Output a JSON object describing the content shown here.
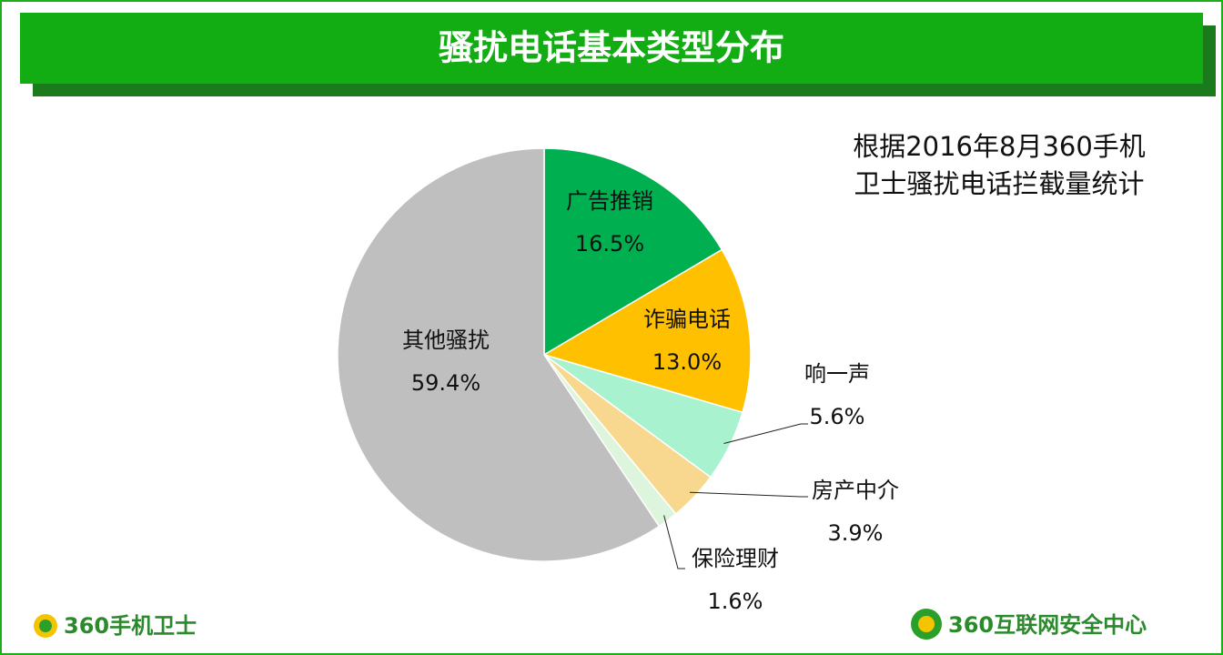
{
  "chart_data": {
    "type": "pie",
    "title": "骚扰电话基本类型分布",
    "subtitle": [
      "根据2016年8月360手机",
      "卫士骚扰电话拦截量统计"
    ],
    "categories": [
      "广告推销",
      "诈骗电话",
      "响一声",
      "房产中介",
      "保险理财",
      "其他骚扰"
    ],
    "values": [
      16.5,
      13.0,
      5.6,
      3.9,
      1.6,
      59.4
    ],
    "value_labels": [
      "16.5%",
      "13.0%",
      "5.6%",
      "3.9%",
      "1.6%",
      "59.4%"
    ],
    "colors": [
      "#00b050",
      "#ffc000",
      "#a9f2cf",
      "#f7d88e",
      "#dcf5dc",
      "#bfbfbf"
    ]
  },
  "footer": {
    "left": "360手机卫士",
    "right": "360互联网安全中心"
  }
}
